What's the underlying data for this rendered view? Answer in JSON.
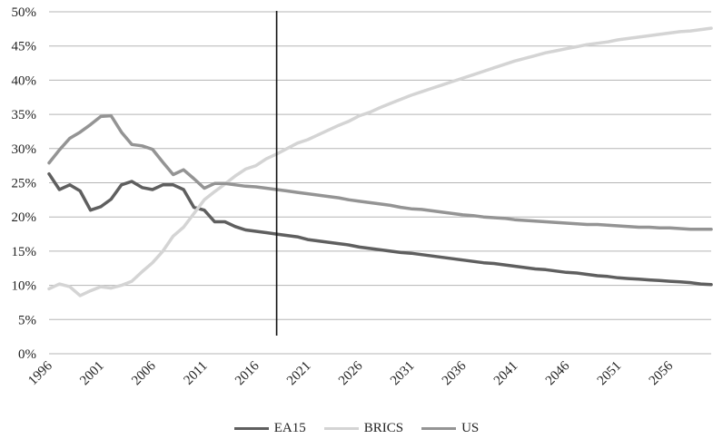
{
  "chart_data": {
    "type": "line",
    "title": "",
    "xlabel": "",
    "ylabel": "",
    "ylim": [
      0,
      50
    ],
    "y_unit": "%",
    "y_ticks": [
      "0%",
      "5%",
      "10%",
      "15%",
      "20%",
      "25%",
      "30%",
      "35%",
      "40%",
      "45%",
      "50%"
    ],
    "x_tick_labels": [
      "1996",
      "2001",
      "2006",
      "2011",
      "2016",
      "2021",
      "2026",
      "2031",
      "2036",
      "2041",
      "2046",
      "2051",
      "2056"
    ],
    "grid": "horizontal",
    "legend_position": "bottom",
    "vertical_marker_year": 2018,
    "x": [
      1996,
      1997,
      1998,
      1999,
      2000,
      2001,
      2002,
      2003,
      2004,
      2005,
      2006,
      2007,
      2008,
      2009,
      2010,
      2011,
      2012,
      2013,
      2014,
      2015,
      2016,
      2017,
      2018,
      2019,
      2020,
      2021,
      2022,
      2023,
      2024,
      2025,
      2026,
      2027,
      2028,
      2029,
      2030,
      2031,
      2032,
      2033,
      2034,
      2035,
      2036,
      2037,
      2038,
      2039,
      2040,
      2041,
      2042,
      2043,
      2044,
      2045,
      2046,
      2047,
      2048,
      2049,
      2050,
      2051,
      2052,
      2053,
      2054,
      2055,
      2056,
      2057,
      2058,
      2059,
      2060
    ],
    "series": [
      {
        "name": "EA15",
        "color": "#5f5f5f",
        "values": [
          26.3,
          24.0,
          24.7,
          23.8,
          21.0,
          21.5,
          22.6,
          24.7,
          25.2,
          24.3,
          24.0,
          24.7,
          24.7,
          24.0,
          21.4,
          21.0,
          19.3,
          19.3,
          18.6,
          18.1,
          17.9,
          17.7,
          17.5,
          17.3,
          17.1,
          16.7,
          16.5,
          16.3,
          16.1,
          15.9,
          15.6,
          15.4,
          15.2,
          15.0,
          14.8,
          14.7,
          14.5,
          14.3,
          14.1,
          13.9,
          13.7,
          13.5,
          13.3,
          13.2,
          13.0,
          12.8,
          12.6,
          12.4,
          12.3,
          12.1,
          11.9,
          11.8,
          11.6,
          11.4,
          11.3,
          11.1,
          11.0,
          10.9,
          10.8,
          10.7,
          10.6,
          10.5,
          10.4,
          10.2,
          10.1
        ]
      },
      {
        "name": "BRICS",
        "color": "#d4d4d4",
        "values": [
          9.5,
          10.2,
          9.8,
          8.5,
          9.2,
          9.8,
          9.6,
          10.0,
          10.6,
          12.0,
          13.3,
          15.0,
          17.2,
          18.5,
          20.5,
          22.5,
          23.7,
          24.8,
          26.0,
          27.0,
          27.5,
          28.5,
          29.2,
          30.0,
          30.8,
          31.3,
          32.0,
          32.7,
          33.4,
          34.0,
          34.8,
          35.3,
          36.0,
          36.6,
          37.2,
          37.8,
          38.3,
          38.8,
          39.3,
          39.8,
          40.3,
          40.8,
          41.3,
          41.8,
          42.3,
          42.8,
          43.2,
          43.6,
          44.0,
          44.3,
          44.6,
          44.9,
          45.2,
          45.4,
          45.6,
          45.9,
          46.1,
          46.3,
          46.5,
          46.7,
          46.9,
          47.1,
          47.2,
          47.4,
          47.6
        ]
      },
      {
        "name": "US",
        "color": "#949494",
        "values": [
          27.9,
          29.8,
          31.5,
          32.4,
          33.5,
          34.7,
          34.8,
          32.4,
          30.6,
          30.4,
          29.9,
          28.0,
          26.2,
          26.9,
          25.6,
          24.2,
          24.9,
          24.9,
          24.7,
          24.5,
          24.4,
          24.2,
          24.0,
          23.8,
          23.6,
          23.4,
          23.2,
          23.0,
          22.8,
          22.5,
          22.3,
          22.1,
          21.9,
          21.7,
          21.4,
          21.2,
          21.1,
          20.9,
          20.7,
          20.5,
          20.3,
          20.2,
          20.0,
          19.9,
          19.8,
          19.6,
          19.5,
          19.4,
          19.3,
          19.2,
          19.1,
          19.0,
          18.9,
          18.9,
          18.8,
          18.7,
          18.6,
          18.5,
          18.5,
          18.4,
          18.4,
          18.3,
          18.2,
          18.2,
          18.2
        ]
      }
    ]
  }
}
